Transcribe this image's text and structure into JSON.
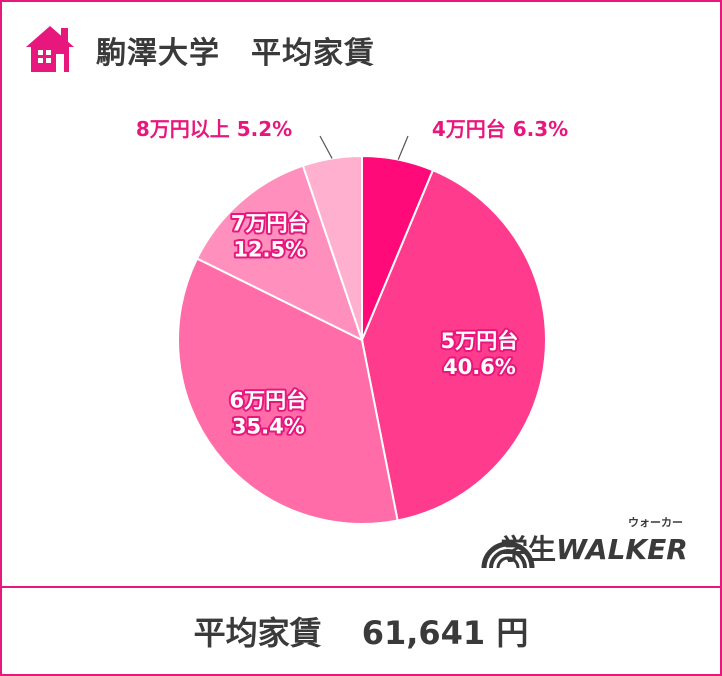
{
  "header": {
    "title": "駒澤大学　平均家賃",
    "icon": "house-icon"
  },
  "footer": {
    "label": "平均家賃",
    "value": "61,641 円"
  },
  "logo": {
    "text_jp": "学生",
    "text_en": "WALKER",
    "ruby": "ウォーカー"
  },
  "colors": {
    "accent": "#e8177d",
    "text": "#3a3a3a"
  },
  "chart_data": {
    "type": "pie",
    "slices": [
      {
        "label": "4万円台",
        "value": 6.3,
        "display": "6.3%",
        "color": "#ff0a78"
      },
      {
        "label": "5万円台",
        "value": 40.6,
        "display": "40.6%",
        "color": "#ff3b8d"
      },
      {
        "label": "6万円台",
        "value": 35.4,
        "display": "35.4%",
        "color": "#ff6ca8"
      },
      {
        "label": "7万円台",
        "value": 12.5,
        "display": "12.5%",
        "color": "#ff8fbd"
      },
      {
        "label": "8万円以上",
        "value": 5.2,
        "display": "5.2%",
        "color": "#ffb0cf"
      }
    ]
  }
}
